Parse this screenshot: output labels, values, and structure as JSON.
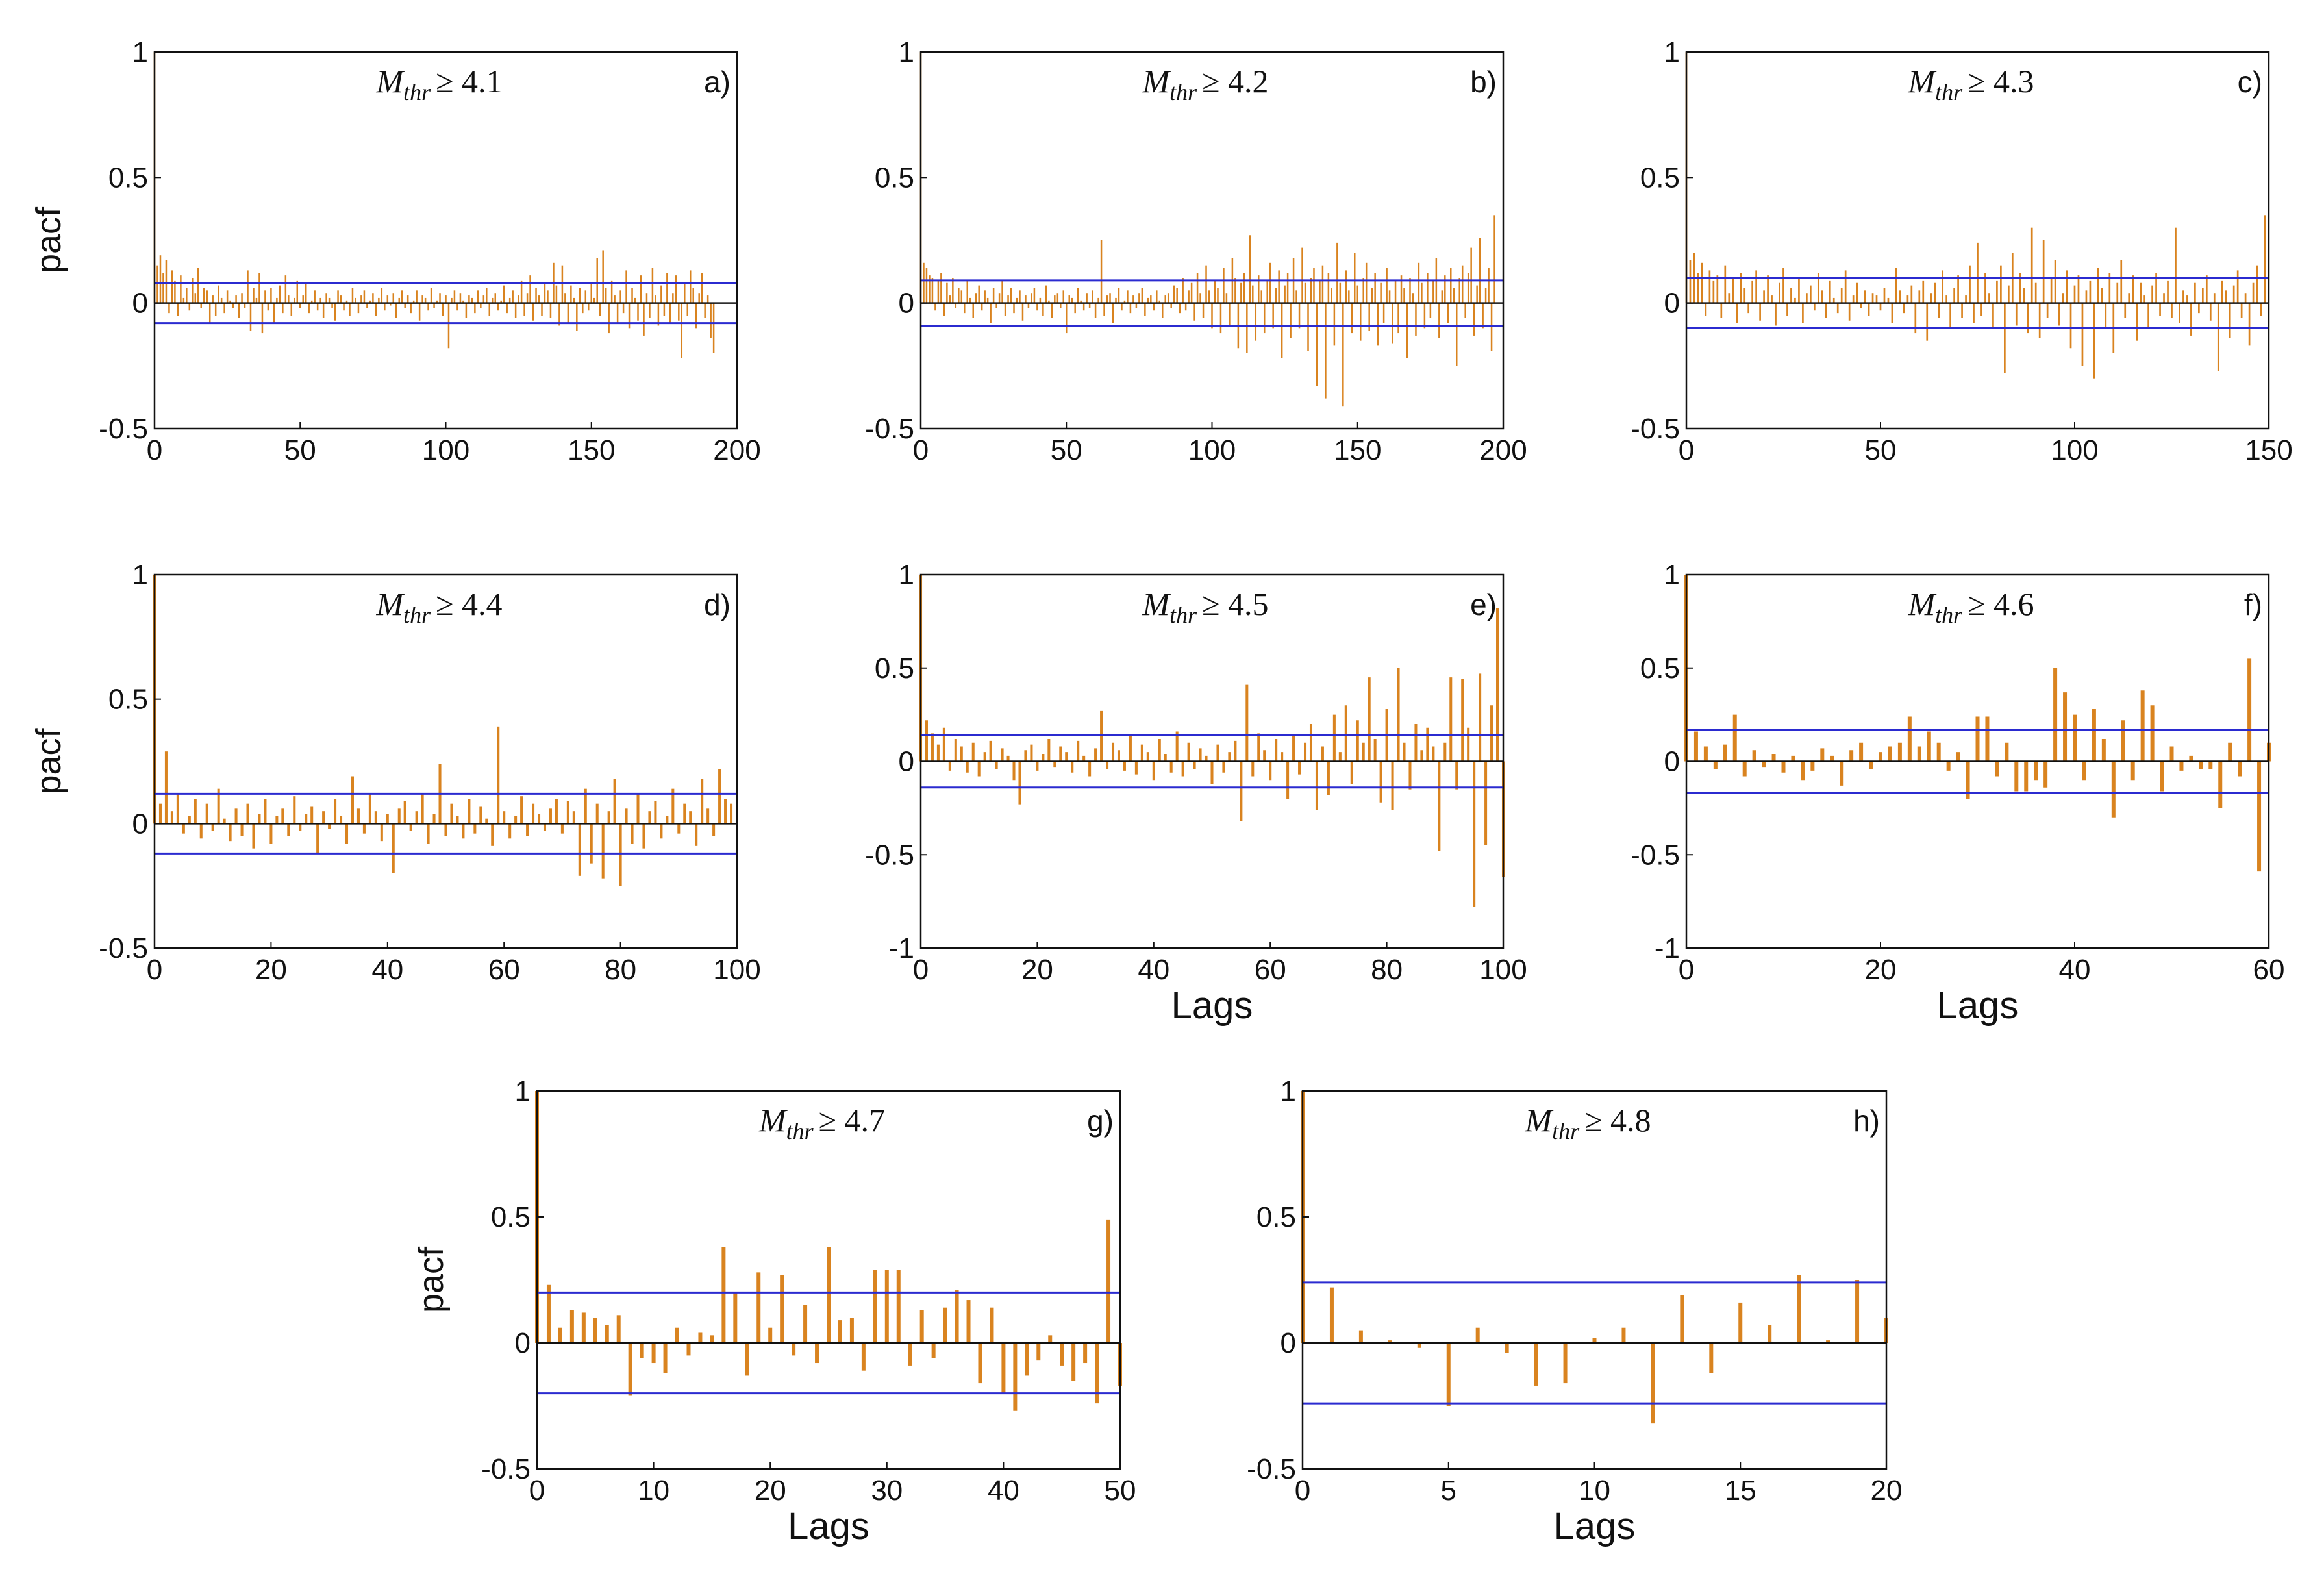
{
  "figure": {
    "colors": {
      "bar": "#d9831f",
      "confidence": "#2b2bd0",
      "zero": "#111111",
      "frame": "#111111"
    }
  },
  "chart_data": [
    {
      "type": "bar",
      "panel": "a)",
      "title_var": "M",
      "title_sub": "thr",
      "title_rel": "≥ 4.1",
      "xlabel": "",
      "ylabel": "pacf",
      "xlim": [
        0,
        200
      ],
      "ylim": [
        -0.5,
        1
      ],
      "xticks": [
        0,
        50,
        100,
        150,
        200
      ],
      "yticks": [
        -0.5,
        0,
        0.5,
        1
      ],
      "xticklabels": [
        "0",
        "50",
        "100",
        "150",
        "200"
      ],
      "yticklabels": [
        "-0.5",
        "0",
        "0.5",
        "1"
      ],
      "confidence": 0.08,
      "n_lags": 200,
      "values": [
        1.0,
        0.15,
        0.19,
        0.12,
        0.17,
        -0.04,
        0.13,
        0.09,
        -0.05,
        0.11,
        0.02,
        0.06,
        -0.03,
        0.1,
        0.04,
        0.14,
        -0.02,
        0.06,
        0.05,
        -0.08,
        0.03,
        -0.05,
        0.07,
        0.02,
        -0.04,
        0.05,
        0.01,
        -0.02,
        0.03,
        -0.06,
        0.04,
        -0.02,
        0.13,
        -0.11,
        0.06,
        0.02,
        0.12,
        -0.12,
        0.05,
        -0.03,
        0.06,
        -0.08,
        0.02,
        0.07,
        -0.04,
        0.11,
        0.03,
        -0.05,
        0.02,
        0.09,
        -0.02,
        0.03,
        0.08,
        -0.04,
        0.01,
        0.05,
        -0.03,
        0.02,
        -0.06,
        0.04,
        0.02,
        -0.02,
        -0.07,
        0.05,
        0.03,
        -0.03,
        0.01,
        -0.05,
        0.06,
        0.02,
        -0.04,
        0.03,
        0.05,
        -0.02,
        0.01,
        0.04,
        -0.05,
        0.02,
        0.06,
        -0.03,
        0.03,
        -0.01,
        0.04,
        -0.06,
        0.02,
        0.05,
        -0.02,
        0.03,
        -0.04,
        0.01,
        0.05,
        -0.07,
        0.03,
        0.02,
        -0.03,
        0.06,
        -0.02,
        0.01,
        0.04,
        -0.05,
        0.03,
        -0.18,
        0.02,
        0.05,
        -0.03,
        0.04,
        0.01,
        -0.06,
        0.03,
        0.02,
        -0.04,
        0.05,
        -0.02,
        0.03,
        0.06,
        -0.05,
        0.02,
        0.04,
        -0.03,
        0.01,
        0.07,
        -0.04,
        0.02,
        0.05,
        -0.06,
        0.03,
        0.09,
        -0.05,
        0.04,
        0.11,
        -0.07,
        0.06,
        0.03,
        -0.05,
        0.08,
        0.05,
        -0.06,
        0.16,
        0.07,
        -0.09,
        0.15,
        0.04,
        -0.08,
        0.07,
        0.02,
        -0.11,
        0.06,
        -0.04,
        0.05,
        -0.03,
        0.08,
        0.02,
        0.18,
        -0.05,
        0.21,
        0.06,
        -0.12,
        0.09,
        0.03,
        -0.08,
        0.05,
        -0.04,
        0.13,
        -0.1,
        0.06,
        0.02,
        -0.07,
        0.11,
        -0.13,
        0.04,
        -0.06,
        0.14,
        0.03,
        -0.09,
        0.07,
        -0.05,
        0.12,
        -0.08,
        0.04,
        0.11,
        -0.07,
        -0.22,
        0.08,
        -0.05,
        0.13,
        0.06,
        -0.1,
        0.04,
        0.12,
        -0.06,
        0.03,
        -0.14,
        -0.2
      ]
    },
    {
      "type": "bar",
      "panel": "b)",
      "title_var": "M",
      "title_sub": "thr",
      "title_rel": "≥ 4.2",
      "xlabel": "",
      "ylabel": "",
      "xlim": [
        0,
        200
      ],
      "ylim": [
        -0.5,
        1
      ],
      "xticks": [
        0,
        50,
        100,
        150,
        200
      ],
      "yticks": [
        -0.5,
        0,
        0.5,
        1
      ],
      "xticklabels": [
        "0",
        "50",
        "100",
        "150",
        "200"
      ],
      "yticklabels": [
        "-0.5",
        "0",
        "0.5",
        "1"
      ],
      "confidence": 0.09,
      "n_lags": 200,
      "values": [
        1.0,
        0.16,
        0.14,
        0.11,
        0.1,
        -0.03,
        0.09,
        0.12,
        -0.05,
        0.08,
        0.03,
        0.1,
        -0.02,
        0.06,
        0.05,
        -0.04,
        0.09,
        0.02,
        -0.06,
        0.04,
        0.07,
        -0.03,
        0.05,
        0.02,
        -0.08,
        0.06,
        -0.02,
        0.04,
        0.09,
        -0.05,
        0.03,
        0.06,
        -0.04,
        0.02,
        0.05,
        -0.07,
        0.03,
        -0.02,
        0.04,
        0.06,
        -0.03,
        0.02,
        -0.05,
        0.07,
        0.01,
        -0.06,
        0.03,
        0.04,
        -0.02,
        0.05,
        -0.12,
        0.03,
        0.02,
        -0.04,
        0.06,
        0.01,
        -0.03,
        0.04,
        -0.02,
        0.05,
        -0.06,
        0.02,
        0.25,
        -0.05,
        0.03,
        0.04,
        -0.08,
        0.02,
        0.06,
        -0.03,
        0.01,
        0.05,
        -0.04,
        0.03,
        -0.02,
        0.04,
        0.06,
        -0.05,
        0.02,
        0.03,
        -0.03,
        0.05,
        0.01,
        -0.06,
        0.03,
        0.04,
        -0.02,
        0.07,
        0.06,
        -0.04,
        0.1,
        -0.03,
        0.05,
        0.08,
        -0.07,
        0.12,
        0.04,
        -0.06,
        0.15,
        0.05,
        -0.1,
        0.09,
        0.06,
        -0.12,
        0.14,
        0.04,
        -0.09,
        0.18,
        0.1,
        -0.18,
        0.08,
        0.12,
        -0.2,
        0.27,
        0.07,
        -0.15,
        0.11,
        0.05,
        -0.12,
        0.09,
        0.16,
        -0.1,
        0.06,
        0.13,
        -0.22,
        0.07,
        0.12,
        -0.14,
        0.18,
        0.05,
        -0.1,
        0.22,
        0.08,
        -0.19,
        0.1,
        0.14,
        -0.33,
        0.09,
        0.15,
        -0.38,
        0.12,
        0.06,
        -0.17,
        0.24,
        0.08,
        -0.41,
        0.13,
        0.05,
        -0.12,
        0.2,
        0.07,
        -0.15,
        0.1,
        0.16,
        -0.11,
        0.06,
        0.12,
        -0.17,
        0.08,
        -0.08,
        0.14,
        0.05,
        -0.16,
        0.09,
        -0.12,
        0.11,
        0.06,
        -0.22,
        0.1,
        0.04,
        -0.13,
        0.16,
        0.08,
        -0.1,
        0.12,
        -0.06,
        0.09,
        0.18,
        -0.14,
        0.05,
        0.11,
        -0.08,
        0.14,
        0.06,
        -0.25,
        0.1,
        0.15,
        -0.06,
        0.12,
        0.22,
        -0.13,
        0.07,
        0.26,
        -0.1,
        0.06,
        0.14,
        -0.19,
        0.35
      ]
    },
    {
      "type": "bar",
      "panel": "c)",
      "title_var": "M",
      "title_sub": "thr",
      "title_rel": "≥ 4.3",
      "xlabel": "",
      "ylabel": "",
      "xlim": [
        0,
        150
      ],
      "ylim": [
        -0.5,
        1
      ],
      "xticks": [
        0,
        50,
        100,
        150
      ],
      "yticks": [
        -0.5,
        0,
        0.5,
        1
      ],
      "xticklabels": [
        "0",
        "50",
        "100",
        "150"
      ],
      "yticklabels": [
        "-0.5",
        "0",
        "0.5",
        "1"
      ],
      "confidence": 0.1,
      "n_lags": 150,
      "values": [
        1.0,
        0.17,
        0.2,
        0.12,
        0.16,
        -0.05,
        0.13,
        0.09,
        0.11,
        -0.06,
        0.15,
        0.04,
        0.1,
        -0.08,
        0.12,
        0.06,
        -0.04,
        0.09,
        0.13,
        -0.07,
        0.05,
        0.11,
        0.03,
        -0.09,
        0.08,
        0.14,
        -0.05,
        0.06,
        0.02,
        0.1,
        -0.08,
        0.04,
        0.07,
        -0.03,
        0.12,
        0.05,
        -0.06,
        0.09,
        0.02,
        -0.04,
        0.06,
        0.13,
        -0.07,
        0.03,
        0.08,
        -0.02,
        0.05,
        -0.05,
        0.04,
        0.03,
        -0.03,
        0.06,
        0.02,
        -0.08,
        0.14,
        0.05,
        -0.04,
        0.03,
        0.07,
        -0.12,
        0.05,
        0.09,
        -0.15,
        0.04,
        0.08,
        -0.06,
        0.13,
        0.03,
        -0.1,
        0.06,
        0.11,
        -0.06,
        0.03,
        0.15,
        -0.08,
        0.24,
        -0.05,
        0.12,
        0.04,
        -0.1,
        0.09,
        0.15,
        -0.28,
        0.07,
        0.2,
        -0.09,
        0.12,
        0.06,
        -0.12,
        0.3,
        0.08,
        -0.14,
        0.25,
        -0.06,
        0.1,
        0.17,
        -0.09,
        0.04,
        0.13,
        -0.18,
        0.07,
        0.11,
        -0.25,
        0.05,
        0.09,
        -0.3,
        0.14,
        0.06,
        -0.1,
        0.12,
        -0.2,
        0.08,
        0.17,
        -0.06,
        0.04,
        0.11,
        -0.15,
        0.08,
        0.03,
        -0.1,
        0.07,
        0.12,
        -0.05,
        0.04,
        0.09,
        -0.06,
        0.3,
        -0.08,
        0.05,
        0.03,
        -0.13,
        0.08,
        -0.04,
        0.06,
        0.11,
        -0.07,
        0.04,
        -0.27,
        0.09,
        0.05,
        -0.14,
        0.07,
        0.13,
        -0.06,
        0.04,
        -0.17,
        0.08,
        0.15,
        -0.05,
        0.35
      ]
    },
    {
      "type": "bar",
      "panel": "d)",
      "title_var": "M",
      "title_sub": "thr",
      "title_rel": "≥ 4.4",
      "xlabel": "",
      "ylabel": "pacf",
      "xlim": [
        0,
        100
      ],
      "ylim": [
        -0.5,
        1
      ],
      "xticks": [
        0,
        20,
        40,
        60,
        80,
        100
      ],
      "yticks": [
        -0.5,
        0,
        0.5,
        1
      ],
      "xticklabels": [
        "0",
        "20",
        "40",
        "60",
        "80",
        "100"
      ],
      "yticklabels": [
        "-0.5",
        "0",
        "0.5",
        "1"
      ],
      "confidence": 0.12,
      "n_lags": 100,
      "values": [
        1.0,
        0.08,
        0.29,
        0.05,
        0.12,
        -0.04,
        0.03,
        0.1,
        -0.06,
        0.08,
        -0.03,
        0.14,
        0.02,
        -0.07,
        0.06,
        -0.05,
        0.08,
        -0.1,
        0.04,
        0.1,
        -0.08,
        0.03,
        0.06,
        -0.05,
        0.11,
        -0.03,
        0.04,
        0.07,
        -0.12,
        0.05,
        -0.02,
        0.1,
        0.03,
        -0.08,
        0.19,
        0.06,
        -0.04,
        0.12,
        0.05,
        -0.07,
        0.04,
        -0.2,
        0.06,
        0.09,
        -0.03,
        0.05,
        0.12,
        -0.08,
        0.04,
        0.24,
        -0.05,
        0.08,
        0.03,
        -0.06,
        0.1,
        -0.04,
        0.07,
        0.02,
        -0.09,
        0.39,
        0.05,
        -0.06,
        0.03,
        0.11,
        -0.05,
        0.08,
        0.04,
        -0.03,
        0.06,
        0.1,
        -0.04,
        0.09,
        0.05,
        -0.21,
        0.14,
        -0.16,
        0.08,
        -0.22,
        0.05,
        0.18,
        -0.25,
        0.06,
        -0.08,
        0.12,
        -0.1,
        0.05,
        0.09,
        -0.06,
        0.03,
        0.14,
        -0.04,
        0.08,
        0.05,
        -0.09,
        0.18,
        0.06,
        -0.05,
        0.22,
        0.1,
        0.08
      ]
    },
    {
      "type": "bar",
      "panel": "e)",
      "title_var": "M",
      "title_sub": "thr",
      "title_rel": "≥ 4.5",
      "xlabel": "Lags",
      "ylabel": "",
      "xlim": [
        0,
        100
      ],
      "ylim": [
        -1,
        1
      ],
      "xticks": [
        0,
        20,
        40,
        60,
        80,
        100
      ],
      "yticks": [
        -1,
        -0.5,
        0,
        0.5,
        1
      ],
      "xticklabels": [
        "0",
        "20",
        "40",
        "60",
        "80",
        "100"
      ],
      "yticklabels": [
        "-1",
        "-0.5",
        "0",
        "0.5",
        "1"
      ],
      "confidence": 0.14,
      "n_lags": 100,
      "values": [
        1.0,
        0.22,
        0.15,
        0.09,
        0.18,
        -0.05,
        0.12,
        0.08,
        -0.06,
        0.1,
        -0.08,
        0.05,
        0.11,
        -0.04,
        0.07,
        0.03,
        -0.1,
        -0.23,
        0.06,
        0.09,
        -0.05,
        0.04,
        0.12,
        -0.03,
        0.08,
        0.05,
        -0.06,
        0.11,
        0.03,
        -0.08,
        0.07,
        0.27,
        -0.04,
        0.1,
        0.06,
        -0.05,
        0.14,
        -0.07,
        0.09,
        0.05,
        -0.1,
        0.12,
        0.04,
        -0.06,
        0.16,
        -0.08,
        0.1,
        -0.04,
        0.07,
        0.03,
        -0.12,
        0.09,
        -0.06,
        0.05,
        0.11,
        -0.32,
        0.41,
        -0.08,
        0.15,
        0.06,
        -0.1,
        0.12,
        0.05,
        -0.2,
        0.14,
        -0.07,
        0.1,
        0.2,
        -0.26,
        0.08,
        -0.18,
        0.25,
        0.05,
        0.3,
        -0.12,
        0.22,
        0.1,
        0.45,
        0.12,
        -0.22,
        0.28,
        -0.26,
        0.5,
        0.1,
        -0.15,
        0.2,
        0.06,
        0.18,
        0.08,
        -0.48,
        0.1,
        0.45,
        -0.15,
        0.44,
        0.18,
        -0.78,
        0.47,
        -0.45,
        0.3,
        0.82,
        -0.62
      ]
    },
    {
      "type": "bar",
      "panel": "f)",
      "title_var": "M",
      "title_sub": "thr",
      "title_rel": "≥ 4.6",
      "xlabel": "Lags",
      "ylabel": "",
      "xlim": [
        0,
        60
      ],
      "ylim": [
        -1,
        1
      ],
      "xticks": [
        0,
        20,
        40,
        60
      ],
      "yticks": [
        -1,
        -0.5,
        0,
        0.5,
        1
      ],
      "xticklabels": [
        "0",
        "20",
        "40",
        "60"
      ],
      "yticklabels": [
        "-1",
        "-0.5",
        "0",
        "0.5",
        "1"
      ],
      "confidence": 0.17,
      "n_lags": 60,
      "values": [
        1.0,
        0.16,
        0.08,
        -0.04,
        0.09,
        0.25,
        -0.08,
        0.06,
        -0.03,
        0.04,
        -0.06,
        0.03,
        -0.1,
        -0.05,
        0.07,
        0.03,
        -0.13,
        0.06,
        0.1,
        -0.04,
        0.05,
        0.08,
        0.1,
        0.24,
        0.08,
        0.16,
        0.1,
        -0.05,
        0.05,
        -0.2,
        0.24,
        0.24,
        -0.08,
        0.1,
        -0.16,
        -0.16,
        -0.1,
        -0.14,
        0.5,
        0.37,
        0.25,
        -0.1,
        0.28,
        0.12,
        -0.3,
        0.22,
        -0.1,
        0.38,
        0.3,
        -0.16,
        0.08,
        -0.05,
        0.03,
        -0.04,
        -0.04,
        -0.25,
        0.1,
        -0.08,
        0.55,
        -0.59,
        0.1
      ]
    },
    {
      "type": "bar",
      "panel": "g)",
      "title_var": "M",
      "title_sub": "thr",
      "title_rel": "≥ 4.7",
      "xlabel": "Lags",
      "ylabel": "pacf",
      "xlim": [
        0,
        50
      ],
      "ylim": [
        -0.5,
        1
      ],
      "xticks": [
        0,
        10,
        20,
        30,
        40,
        50
      ],
      "yticks": [
        -0.5,
        0,
        0.5,
        1
      ],
      "xticklabels": [
        "0",
        "10",
        "20",
        "30",
        "40",
        "50"
      ],
      "yticklabels": [
        "-0.5",
        "0",
        "0.5",
        "1"
      ],
      "confidence": 0.2,
      "n_lags": 50,
      "values": [
        1.0,
        0.23,
        0.06,
        0.13,
        0.12,
        0.1,
        0.07,
        0.11,
        -0.21,
        -0.06,
        -0.08,
        -0.12,
        0.06,
        -0.05,
        0.04,
        0.03,
        0.38,
        0.2,
        -0.13,
        0.28,
        0.06,
        0.27,
        -0.05,
        0.15,
        -0.08,
        0.38,
        0.09,
        0.1,
        -0.11,
        0.29,
        0.29,
        0.29,
        -0.09,
        0.13,
        -0.06,
        0.14,
        0.21,
        0.17,
        -0.16,
        0.14,
        -0.2,
        -0.27,
        -0.13,
        -0.07,
        0.03,
        -0.09,
        -0.15,
        -0.08,
        -0.24,
        0.49,
        -0.17
      ]
    },
    {
      "type": "bar",
      "panel": "h)",
      "title_var": "M",
      "title_sub": "thr",
      "title_rel": "≥ 4.8",
      "xlabel": "Lags",
      "ylabel": "",
      "xlim": [
        0,
        20
      ],
      "ylim": [
        -0.5,
        1
      ],
      "xticks": [
        0,
        5,
        10,
        15,
        20
      ],
      "yticks": [
        -0.5,
        0,
        0.5,
        1
      ],
      "xticklabels": [
        "0",
        "5",
        "10",
        "15",
        "20"
      ],
      "yticklabels": [
        "-0.5",
        "0",
        "0.5",
        "1"
      ],
      "confidence": 0.24,
      "n_lags": 20,
      "values": [
        1.0,
        0.22,
        0.05,
        0.01,
        -0.02,
        -0.25,
        0.06,
        -0.04,
        -0.17,
        -0.16,
        0.02,
        0.06,
        -0.32,
        0.19,
        -0.12,
        0.16,
        0.07,
        0.27,
        0.01,
        0.25,
        0.1
      ]
    }
  ]
}
